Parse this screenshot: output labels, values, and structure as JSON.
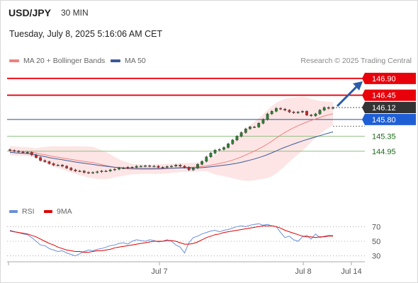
{
  "header": {
    "symbol": "USD/JPY",
    "timeframe": "30 MIN",
    "datetime": "Tuesday, July 8, 2025 5:16:06 AM CET"
  },
  "legend": {
    "ma20_label": "MA 20 + Bollinger Bands",
    "ma50_label": "MA 50",
    "credit": "Research © 2025 Trading Central"
  },
  "rsi_legend": {
    "rsi_label": "RSI",
    "ma_label": "9MA"
  },
  "colors": {
    "candle_up": "#2e7d32",
    "candle_down": "#c62828",
    "band_fill": "#fde0e0",
    "ma20": "#f08080",
    "ma50": "#3b5998",
    "resistance": "#e8000b",
    "support": "#8fbf7f",
    "pivot": "#2a4f8c",
    "current": "#333333",
    "arrow": "#2a5ca8",
    "rsi": "#6a8fd8",
    "rsi_ma": "#e00000"
  },
  "chart_data": [
    {
      "type": "candlestick",
      "y_range": [
        143.6,
        147.2
      ],
      "x_ticks": [
        "Jul 7",
        "Jul 8",
        "Jul 14"
      ],
      "levels": [
        {
          "value": 146.9,
          "label": "146.90",
          "kind": "resistance"
        },
        {
          "value": 146.45,
          "label": "146.45",
          "kind": "resistance"
        },
        {
          "value": 146.12,
          "label": "146.12",
          "kind": "current"
        },
        {
          "value": 145.8,
          "label": "145.80",
          "kind": "pivot"
        },
        {
          "value": 145.35,
          "label": "145.35",
          "kind": "support"
        },
        {
          "value": 144.95,
          "label": "144.95",
          "kind": "support"
        }
      ],
      "close": [
        144.97,
        144.95,
        144.93,
        144.92,
        144.92,
        144.85,
        144.78,
        144.7,
        144.67,
        144.62,
        144.58,
        144.58,
        144.55,
        144.5,
        144.45,
        144.42,
        144.42,
        144.38,
        144.37,
        144.38,
        144.4,
        144.42,
        144.42,
        144.45,
        144.47,
        144.5,
        144.5,
        144.52,
        144.52,
        144.55,
        144.55,
        144.56,
        144.55,
        144.55,
        144.52,
        144.52,
        144.54,
        144.55,
        144.58,
        144.55,
        144.52,
        144.45,
        144.5,
        144.6,
        144.68,
        144.8,
        144.9,
        144.98,
        145.0,
        145.05,
        145.15,
        145.25,
        145.35,
        145.45,
        145.55,
        145.6,
        145.6,
        145.7,
        145.8,
        145.95,
        146.02,
        146.1,
        146.08,
        146.05,
        146.0,
        145.98,
        146.0,
        146.02,
        145.92,
        145.9,
        145.95,
        146.05,
        146.12,
        146.1,
        146.12
      ]
    },
    {
      "type": "line",
      "title": "RSI",
      "y_ticks": [
        70,
        50,
        30
      ],
      "y_range": [
        20,
        80
      ],
      "series": [
        {
          "name": "RSI",
          "values": [
            65,
            63,
            62,
            60,
            59,
            55,
            50,
            45,
            44,
            40,
            38,
            36,
            37,
            34,
            32,
            30,
            33,
            36,
            38,
            37,
            39,
            40,
            42,
            44,
            45,
            47,
            48,
            46,
            50,
            52,
            51,
            50,
            52,
            51,
            49,
            50,
            52,
            50,
            45,
            42,
            34,
            48,
            55,
            57,
            60,
            62,
            64,
            65,
            63,
            65,
            66,
            68,
            70,
            71,
            70,
            72,
            73,
            74,
            72,
            73,
            71,
            70,
            62,
            55,
            57,
            52,
            50,
            56,
            58,
            53,
            60,
            55,
            57,
            58,
            58
          ]
        },
        {
          "name": "9MA",
          "values": [
            64,
            63,
            62,
            61,
            60,
            58,
            56,
            53,
            50,
            47,
            45,
            42,
            40,
            38,
            37,
            36,
            36,
            35,
            35,
            36,
            37,
            37,
            38,
            39,
            41,
            42,
            43,
            44,
            45,
            46,
            47,
            48,
            49,
            50,
            50,
            50,
            51,
            51,
            50,
            48,
            46,
            46,
            47,
            49,
            52,
            55,
            57,
            59,
            60,
            62,
            63,
            64,
            65,
            66,
            67,
            68,
            69,
            70,
            71,
            71,
            71,
            70,
            68,
            65,
            63,
            61,
            59,
            57,
            56,
            56,
            55,
            56,
            56,
            57,
            57
          ]
        }
      ]
    }
  ]
}
